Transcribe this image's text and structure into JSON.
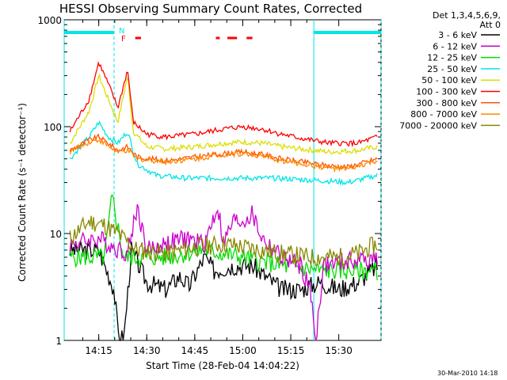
{
  "chart_data": {
    "type": "line",
    "title": "HESSI Observing Summary Count Rates, Corrected",
    "xlabel": "Start Time (28-Feb-04 14:04:22)",
    "ylabel": "Corrected Count Rate (s⁻¹ detector⁻¹)",
    "y_log": true,
    "ylim": [
      1,
      1000
    ],
    "xlim_minutes": [
      14.07,
      15.72
    ],
    "x_ticks": [
      "14:15",
      "14:30",
      "14:45",
      "15:00",
      "15:15",
      "15:30"
    ],
    "y_ticks": [
      "1",
      "10",
      "100",
      "1000"
    ],
    "legend_header": [
      "Det 1,3,4,5,6,9,",
      "Att 0"
    ],
    "legend_position": "right",
    "flag_labels": [
      "N",
      "F"
    ],
    "footer": "30-Mar-2010 14:18",
    "series": [
      {
        "name": "3 - 6 keV",
        "color": "#000000",
        "points": [
          [
            14.1,
            7
          ],
          [
            14.25,
            7
          ],
          [
            14.33,
            3
          ],
          [
            14.35,
            1.2
          ],
          [
            14.38,
            1
          ],
          [
            14.42,
            7
          ],
          [
            14.5,
            3.5
          ],
          [
            14.6,
            3
          ],
          [
            14.67,
            4
          ],
          [
            14.72,
            3.2
          ],
          [
            14.8,
            6
          ],
          [
            14.85,
            4.5
          ],
          [
            14.95,
            5
          ],
          [
            15.05,
            5
          ],
          [
            15.2,
            3
          ],
          [
            15.3,
            3
          ],
          [
            15.4,
            3.5
          ],
          [
            15.5,
            3
          ],
          [
            15.6,
            3.5
          ],
          [
            15.7,
            5
          ]
        ]
      },
      {
        "name": "6 - 12 keV",
        "color": "#cc00cc",
        "points": [
          [
            14.1,
            8
          ],
          [
            14.25,
            9
          ],
          [
            14.33,
            7.5
          ],
          [
            14.4,
            6.5
          ],
          [
            14.45,
            18
          ],
          [
            14.5,
            7
          ],
          [
            14.6,
            8
          ],
          [
            14.7,
            9
          ],
          [
            14.8,
            8
          ],
          [
            14.87,
            18
          ],
          [
            14.9,
            8
          ],
          [
            14.95,
            13
          ],
          [
            15.0,
            13
          ],
          [
            15.05,
            15
          ],
          [
            15.1,
            9
          ],
          [
            15.2,
            6
          ],
          [
            15.3,
            5
          ],
          [
            15.35,
            3
          ],
          [
            15.38,
            1
          ],
          [
            15.42,
            5
          ],
          [
            15.55,
            5.5
          ],
          [
            15.7,
            6
          ]
        ]
      },
      {
        "name": "12 - 25 keV",
        "color": "#00dd00",
        "points": [
          [
            14.1,
            6
          ],
          [
            14.2,
            6
          ],
          [
            14.28,
            6
          ],
          [
            14.32,
            22
          ],
          [
            14.38,
            6
          ],
          [
            14.45,
            6
          ],
          [
            14.6,
            6
          ],
          [
            14.8,
            7
          ],
          [
            15.0,
            6
          ],
          [
            15.2,
            5
          ],
          [
            15.4,
            4.5
          ],
          [
            15.6,
            4.5
          ],
          [
            15.7,
            4.5
          ]
        ]
      },
      {
        "name": "25 - 50 keV",
        "color": "#00e5e5",
        "points": [
          [
            14.1,
            50
          ],
          [
            14.2,
            80
          ],
          [
            14.25,
            110
          ],
          [
            14.3,
            80
          ],
          [
            14.35,
            70
          ],
          [
            14.4,
            90
          ],
          [
            14.45,
            45
          ],
          [
            14.55,
            35
          ],
          [
            14.7,
            33
          ],
          [
            14.85,
            33
          ],
          [
            15.0,
            33
          ],
          [
            15.15,
            33
          ],
          [
            15.3,
            32
          ],
          [
            15.45,
            31
          ],
          [
            15.55,
            30
          ],
          [
            15.7,
            35
          ]
        ]
      },
      {
        "name": "50 - 100 keV",
        "color": "#dddd00",
        "points": [
          [
            14.1,
            70
          ],
          [
            14.2,
            140
          ],
          [
            14.25,
            300
          ],
          [
            14.3,
            180
          ],
          [
            14.35,
            110
          ],
          [
            14.4,
            300
          ],
          [
            14.43,
            90
          ],
          [
            14.5,
            65
          ],
          [
            14.6,
            62
          ],
          [
            14.75,
            65
          ],
          [
            14.9,
            70
          ],
          [
            15.0,
            72
          ],
          [
            15.1,
            70
          ],
          [
            15.2,
            65
          ],
          [
            15.3,
            62
          ],
          [
            15.45,
            58
          ],
          [
            15.6,
            60
          ],
          [
            15.7,
            65
          ]
        ]
      },
      {
        "name": "100 - 300 keV",
        "color": "#ff0000",
        "points": [
          [
            14.1,
            90
          ],
          [
            14.2,
            180
          ],
          [
            14.25,
            400
          ],
          [
            14.3,
            250
          ],
          [
            14.35,
            150
          ],
          [
            14.4,
            340
          ],
          [
            14.43,
            110
          ],
          [
            14.5,
            85
          ],
          [
            14.6,
            80
          ],
          [
            14.75,
            85
          ],
          [
            14.9,
            95
          ],
          [
            15.0,
            100
          ],
          [
            15.1,
            95
          ],
          [
            15.2,
            85
          ],
          [
            15.3,
            78
          ],
          [
            15.45,
            70
          ],
          [
            15.6,
            70
          ],
          [
            15.7,
            80
          ]
        ]
      },
      {
        "name": "300 - 800 keV",
        "color": "#ff5500",
        "points": [
          [
            14.1,
            60
          ],
          [
            14.2,
            75
          ],
          [
            14.25,
            80
          ],
          [
            14.3,
            70
          ],
          [
            14.35,
            60
          ],
          [
            14.4,
            65
          ],
          [
            14.45,
            52
          ],
          [
            14.6,
            48
          ],
          [
            14.75,
            52
          ],
          [
            14.9,
            56
          ],
          [
            15.0,
            58
          ],
          [
            15.1,
            55
          ],
          [
            15.2,
            50
          ],
          [
            15.3,
            47
          ],
          [
            15.45,
            43
          ],
          [
            15.55,
            42
          ],
          [
            15.7,
            50
          ]
        ]
      },
      {
        "name": "800 - 7000 keV",
        "color": "#ff8800",
        "points": [
          [
            14.1,
            58
          ],
          [
            14.2,
            72
          ],
          [
            14.25,
            76
          ],
          [
            14.3,
            66
          ],
          [
            14.35,
            57
          ],
          [
            14.4,
            60
          ],
          [
            14.45,
            50
          ],
          [
            14.6,
            47
          ],
          [
            14.75,
            50
          ],
          [
            14.9,
            55
          ],
          [
            15.0,
            56
          ],
          [
            15.1,
            53
          ],
          [
            15.2,
            48
          ],
          [
            15.3,
            45
          ],
          [
            15.45,
            41
          ],
          [
            15.55,
            40
          ],
          [
            15.7,
            48
          ]
        ]
      },
      {
        "name": "7000 - 20000 keV",
        "color": "#888800",
        "points": [
          [
            14.1,
            9
          ],
          [
            14.2,
            13
          ],
          [
            14.28,
            12
          ],
          [
            14.35,
            10
          ],
          [
            14.45,
            7
          ],
          [
            14.6,
            6.5
          ],
          [
            14.75,
            7.5
          ],
          [
            14.9,
            8
          ],
          [
            15.0,
            7.5
          ],
          [
            15.1,
            7
          ],
          [
            15.2,
            6.5
          ],
          [
            15.35,
            6
          ],
          [
            15.5,
            6
          ],
          [
            15.6,
            6.5
          ],
          [
            15.7,
            8
          ]
        ]
      }
    ],
    "flags": [
      {
        "color": "#00e5e5",
        "segments": [
          [
            14.07,
            14.33
          ],
          [
            15.37,
            15.72
          ]
        ]
      },
      {
        "color": "#ff0000",
        "segments": [
          [
            14.44,
            14.47
          ],
          [
            14.86,
            14.88
          ],
          [
            14.92,
            14.97
          ],
          [
            15.02,
            15.05
          ]
        ]
      }
    ],
    "vertical_markers": [
      {
        "x": 14.07,
        "color": "#00e5e5",
        "dashed": false
      },
      {
        "x": 14.33,
        "color": "#00e5e5",
        "dashed": true
      },
      {
        "x": 15.37,
        "color": "#00e5e5",
        "dashed": false
      },
      {
        "x": 15.72,
        "color": "#00e5e5",
        "dashed": true
      }
    ]
  }
}
